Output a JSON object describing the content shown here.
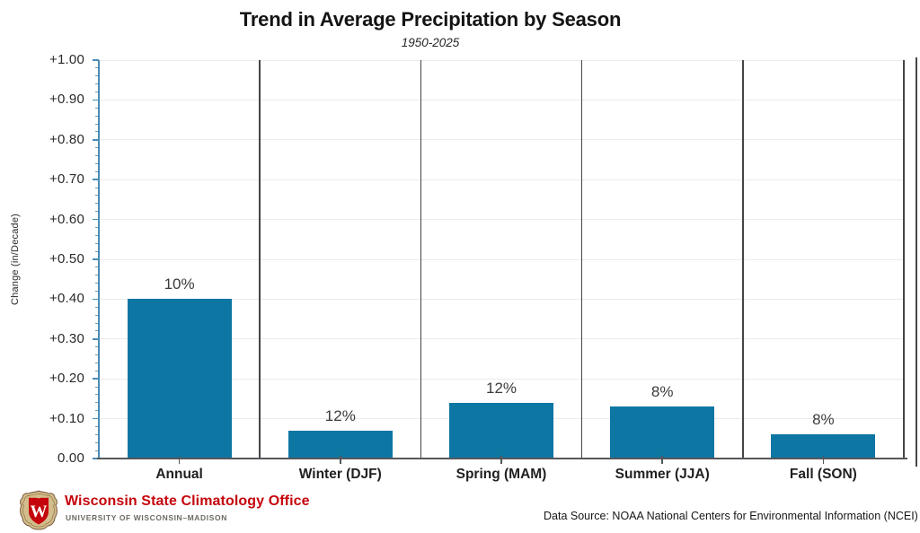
{
  "chart_data": {
    "type": "bar",
    "title": "Trend in Average Precipitation by Season",
    "subtitle": "1950-2025",
    "categories": [
      "Annual",
      "Winter (DJF)",
      "Spring (MAM)",
      "Summer (JJA)",
      "Fall (SON)"
    ],
    "values": [
      0.4,
      0.07,
      0.14,
      0.13,
      0.06
    ],
    "bar_labels": [
      "10%",
      "12%",
      "12%",
      "8%",
      "8%"
    ],
    "xlabel": "",
    "ylabel": "Change (in/Decade)",
    "ylim": [
      0,
      1.0
    ],
    "y_ticks": [
      {
        "value": 1.0,
        "label": "+1.00"
      },
      {
        "value": 0.9,
        "label": "+0.90"
      },
      {
        "value": 0.8,
        "label": "+0.80"
      },
      {
        "value": 0.7,
        "label": "+0.70"
      },
      {
        "value": 0.6,
        "label": "+0.60"
      },
      {
        "value": 0.5,
        "label": "+0.50"
      },
      {
        "value": 0.4,
        "label": "+0.40"
      },
      {
        "value": 0.3,
        "label": "+0.30"
      },
      {
        "value": 0.2,
        "label": "+0.20"
      },
      {
        "value": 0.1,
        "label": "+0.10"
      },
      {
        "value": 0.0,
        "label": "0.00"
      }
    ],
    "y_minor_tick_step": 0.02,
    "grid": "horizontal major gridlines, vertical separators between categories",
    "legend": "none",
    "colors": {
      "bar": "#0e76a3",
      "axis_teal": "#4a8db3",
      "separator": "#454547",
      "xaxis": "#56575b",
      "grid": "#ebebec",
      "brand_red": "#c5050c"
    }
  },
  "footer": {
    "org_name": "Wisconsin State Climatology Office",
    "org_subname": "UNIVERSITY OF WISCONSIN–MADISON",
    "logo_letter": "W",
    "data_source": "Data Source: NOAA National Centers for Environmental Information (NCEI)"
  }
}
